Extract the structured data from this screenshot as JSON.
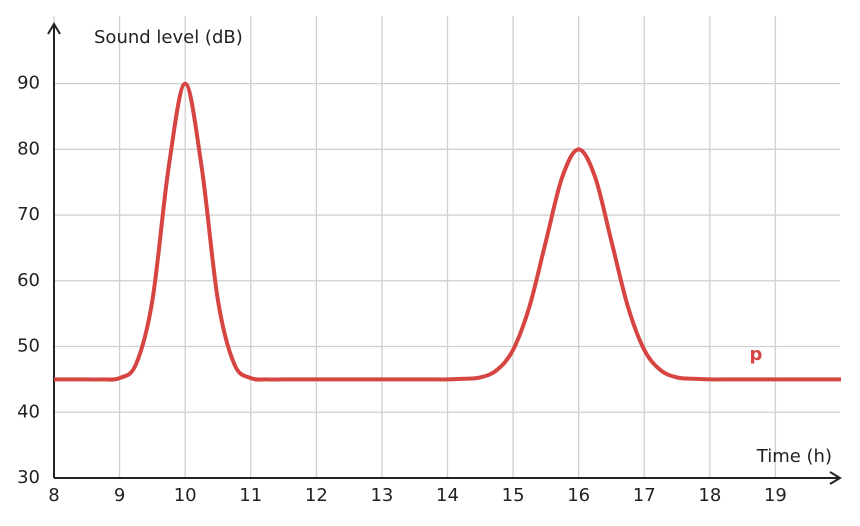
{
  "chart_data": {
    "type": "line",
    "y_label": "Sound level (dB)",
    "x_label": "Time (h)",
    "xlim": [
      8,
      20
    ],
    "ylim": [
      30,
      98
    ],
    "xticks": [
      8,
      9,
      10,
      11,
      12,
      13,
      14,
      15,
      16,
      17,
      18,
      19
    ],
    "yticks": [
      30,
      40,
      50,
      60,
      70,
      80,
      90
    ],
    "grid": true,
    "x": [
      8,
      8.25,
      8.5,
      8.75,
      9,
      9.25,
      9.5,
      9.75,
      10,
      10.25,
      10.5,
      10.75,
      11,
      11.25,
      11.5,
      11.75,
      12,
      12.25,
      12.5,
      12.75,
      13,
      13.25,
      13.5,
      13.75,
      14,
      14.25,
      14.5,
      14.75,
      15,
      15.25,
      15.5,
      15.75,
      16,
      16.25,
      16.5,
      16.75,
      17,
      17.25,
      17.5,
      17.75,
      18,
      18.25,
      18.5,
      18.75,
      19,
      19.25,
      19.5,
      19.75,
      20
    ],
    "series": [
      {
        "name": "p",
        "color": "#d64541",
        "values": [
          45,
          45,
          45,
          45,
          45.2,
          47.3,
          57.0,
          77.4,
          90,
          77.4,
          57.0,
          47.3,
          45.2,
          45,
          45,
          45,
          45,
          45,
          45,
          45,
          45,
          45,
          45,
          45,
          45.0,
          45.1,
          45.3,
          46.4,
          49.5,
          56.1,
          66.0,
          75.8,
          80,
          75.8,
          66.0,
          56.1,
          49.5,
          46.4,
          45.3,
          45.1,
          45,
          45,
          45,
          45,
          45,
          45,
          45,
          45,
          45
        ]
      }
    ]
  }
}
